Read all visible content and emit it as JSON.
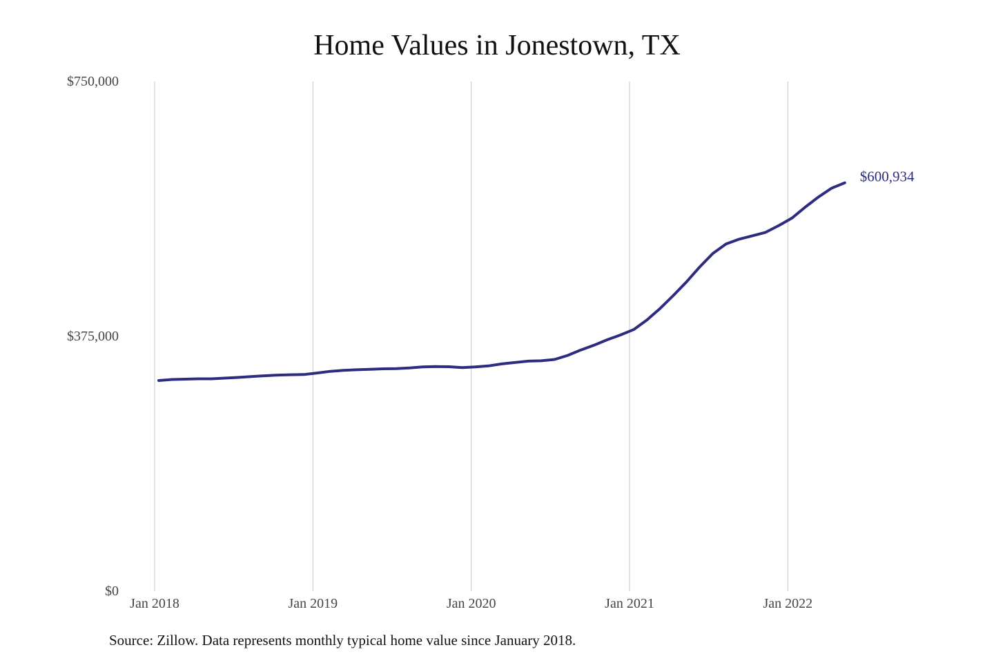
{
  "chart_data": {
    "type": "line",
    "title": "Home Values in Jonestown, TX",
    "source": "Source: Zillow. Data represents monthly typical home value since January 2018.",
    "xlabel": "",
    "ylabel": "",
    "x_ticks": [
      "Jan 2018",
      "Jan 2019",
      "Jan 2020",
      "Jan 2021",
      "Jan 2022"
    ],
    "y_ticks": [
      "$0",
      "$375,000",
      "$750,000"
    ],
    "y_tick_values": [
      0,
      375000,
      750000
    ],
    "ylim": [
      0,
      750000
    ],
    "xlim": [
      "2018-01",
      "2022-07"
    ],
    "grid": "vertical",
    "line_color": "#2e2c80",
    "end_label": "$600,934",
    "series": [
      {
        "x": [
          "2018-01",
          "2018-02",
          "2018-03",
          "2018-04",
          "2018-05",
          "2018-06",
          "2018-07",
          "2018-08",
          "2018-09",
          "2018-10",
          "2018-11",
          "2018-12",
          "2019-01",
          "2019-02",
          "2019-03",
          "2019-04",
          "2019-05",
          "2019-06",
          "2019-07",
          "2019-08",
          "2019-09",
          "2019-10",
          "2019-11",
          "2019-12",
          "2020-01",
          "2020-02",
          "2020-03",
          "2020-04",
          "2020-05",
          "2020-06",
          "2020-07",
          "2020-08",
          "2020-09",
          "2020-10",
          "2020-11",
          "2020-12",
          "2021-01",
          "2021-02",
          "2021-03",
          "2021-04",
          "2021-05",
          "2021-06",
          "2021-07",
          "2021-08",
          "2021-09",
          "2021-10",
          "2021-11",
          "2021-12",
          "2022-01",
          "2022-02",
          "2022-03",
          "2022-04",
          "2022-05"
        ],
        "values": [
          310000,
          311500,
          312000,
          312500,
          312500,
          313500,
          314500,
          315800,
          317000,
          318000,
          318500,
          318800,
          321000,
          323500,
          325000,
          325800,
          326500,
          327200,
          327500,
          328500,
          330000,
          330500,
          330300,
          329000,
          330000,
          331500,
          334500,
          336500,
          338500,
          339000,
          341000,
          347000,
          355000,
          362000,
          370000,
          377000,
          385000,
          399000,
          416000,
          435000,
          455000,
          477000,
          497000,
          511000,
          518000,
          523000,
          528000,
          538000,
          549000,
          565000,
          580000,
          593000,
          600934
        ]
      }
    ]
  }
}
